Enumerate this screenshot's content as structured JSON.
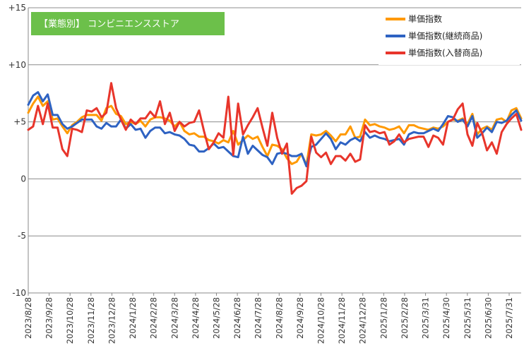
{
  "chart_data": {
    "type": "line",
    "title": "【業態別】 コンビニエンスストア",
    "title_bg_color": "#6cc04a",
    "ylim": [
      -10,
      15
    ],
    "yticks": [
      "+15",
      "+10",
      "+5",
      "0",
      "-5",
      "-10"
    ],
    "grid": "horizontal",
    "legend_position": "top-right",
    "x_tick_labels": [
      "2023/8/28",
      "2023/9/28",
      "2023/10/28",
      "2023/11/28",
      "2023/12/28",
      "2024/1/28",
      "2024/2/28",
      "2024/3/28",
      "2024/4/28",
      "2024/5/28",
      "2024/6/28",
      "2024/7/28",
      "2024/8/28",
      "2024/9/28",
      "2024/10/28",
      "2024/11/28",
      "2024/12/28",
      "2025/1/28",
      "2025/2/28",
      "2025/3/31",
      "2025/4/30",
      "2025/5/31",
      "2025/6/30",
      "2025/7/31"
    ],
    "series": [
      {
        "name": "単価指数",
        "color": "#ff9900",
        "values": [
          5.8,
          6.6,
          7.2,
          6.4,
          6.8,
          5.2,
          5.3,
          4.6,
          4.0,
          4.7,
          5.0,
          5.4,
          5.6,
          5.6,
          5.6,
          5.1,
          6.2,
          6.4,
          5.7,
          5.5,
          4.8,
          5.0,
          4.8,
          5.1,
          4.6,
          5.2,
          5.4,
          5.4,
          5.3,
          5.1,
          4.6,
          5.0,
          4.2,
          3.9,
          4.0,
          3.7,
          3.7,
          3.4,
          3.3,
          3.1,
          3.4,
          3.2,
          4.2,
          3.0,
          3.4,
          3.8,
          3.5,
          3.7,
          2.8,
          2.0,
          3.0,
          2.9,
          2.6,
          1.8,
          1.3,
          1.5,
          2.2,
          1.2,
          3.9,
          3.8,
          3.9,
          4.2,
          3.8,
          3.3,
          3.9,
          3.9,
          4.6,
          3.6,
          3.7,
          5.2,
          4.7,
          4.8,
          4.6,
          4.5,
          4.3,
          4.4,
          4.6,
          4.0,
          4.7,
          4.7,
          4.5,
          4.4,
          4.3,
          4.5,
          4.4,
          4.6,
          5.0,
          5.2,
          5.1,
          5.3,
          4.8,
          5.7,
          3.9,
          4.4,
          4.6,
          4.3,
          5.2,
          5.3,
          5.0,
          6.0,
          6.2,
          5.3
        ]
      },
      {
        "name": "単価指数(継続商品)",
        "color": "#2e62c2",
        "values": [
          6.5,
          7.3,
          7.6,
          6.8,
          7.4,
          5.6,
          5.6,
          4.8,
          4.4,
          4.6,
          4.9,
          5.2,
          5.2,
          5.2,
          4.6,
          4.4,
          4.9,
          4.6,
          4.6,
          5.2,
          4.4,
          4.8,
          4.3,
          4.4,
          3.6,
          4.2,
          4.5,
          4.5,
          4.0,
          4.1,
          3.9,
          3.8,
          3.5,
          3.0,
          2.9,
          2.4,
          2.4,
          2.7,
          3.1,
          2.7,
          2.8,
          2.4,
          2.0,
          1.9,
          3.7,
          2.2,
          2.9,
          2.5,
          2.1,
          1.9,
          1.3,
          2.2,
          2.3,
          2.2,
          2.0,
          2.0,
          2.2,
          1.1,
          2.8,
          3.0,
          3.5,
          4.0,
          3.5,
          2.6,
          3.2,
          3.0,
          3.4,
          3.6,
          3.3,
          4.1,
          3.6,
          3.8,
          3.6,
          3.5,
          3.3,
          3.4,
          3.5,
          3.0,
          3.9,
          4.1,
          4.0,
          4.0,
          4.2,
          4.4,
          4.2,
          4.8,
          5.5,
          5.4,
          5.0,
          5.2,
          4.6,
          5.5,
          3.6,
          4.0,
          4.5,
          4.1,
          5.0,
          4.9,
          5.1,
          5.6,
          6.0,
          5.1
        ]
      },
      {
        "name": "単価指数(入替商品)",
        "color": "#e8352b",
        "values": [
          4.3,
          4.6,
          6.4,
          4.8,
          6.6,
          4.5,
          4.5,
          2.6,
          2.0,
          4.4,
          4.3,
          4.1,
          6.0,
          5.9,
          6.2,
          5.4,
          5.8,
          8.4,
          6.2,
          5.2,
          4.3,
          5.2,
          4.8,
          5.3,
          5.3,
          5.9,
          5.4,
          6.8,
          4.8,
          5.8,
          4.2,
          5.0,
          4.6,
          4.9,
          5.0,
          6.0,
          4.2,
          2.6,
          3.2,
          4.0,
          3.6,
          7.2,
          2.1,
          6.6,
          3.9,
          4.7,
          5.4,
          6.2,
          4.5,
          2.9,
          5.8,
          3.6,
          2.2,
          3.1,
          -1.3,
          -0.8,
          -0.6,
          -0.2,
          3.7,
          2.3,
          1.9,
          2.3,
          1.3,
          2.0,
          2.0,
          1.6,
          2.2,
          1.5,
          1.7,
          4.7,
          4.1,
          4.2,
          4.0,
          4.1,
          3.0,
          3.3,
          3.9,
          3.2,
          3.5,
          3.6,
          3.7,
          3.7,
          2.8,
          3.8,
          3.6,
          3.0,
          5.0,
          5.2,
          6.1,
          6.6,
          3.9,
          2.9,
          4.9,
          4.0,
          2.5,
          3.2,
          2.2,
          4.1,
          4.8,
          5.3,
          5.7,
          4.3
        ]
      }
    ]
  }
}
